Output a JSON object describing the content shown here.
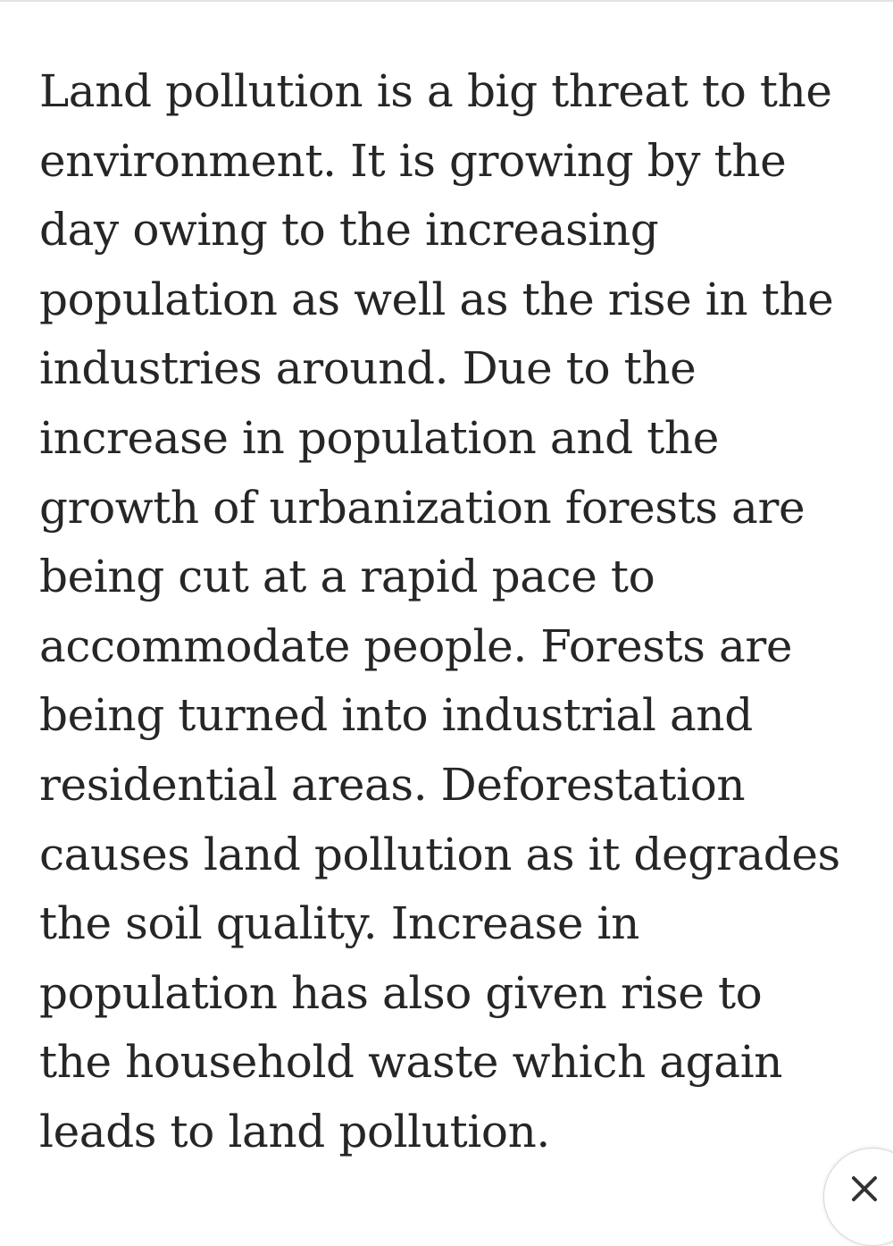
{
  "article": {
    "lines": [
      "Land pollution is a big threat to the",
      "environment. It is growing by the",
      "day owing to the increasing",
      "population as well as the rise in the",
      "industries around. Due to the",
      "increase in population and the",
      "growth of urbanization forests are",
      "being cut at a rapid pace to",
      "accommodate people. Forests are",
      "being turned into industrial and",
      "residential areas. Deforestation",
      "causes land pollution as it degrades",
      "the soil quality. Increase in",
      "population has also given rise to",
      "the household waste which again",
      "leads to land pollution."
    ]
  },
  "close_button": {
    "icon": "close-icon"
  }
}
